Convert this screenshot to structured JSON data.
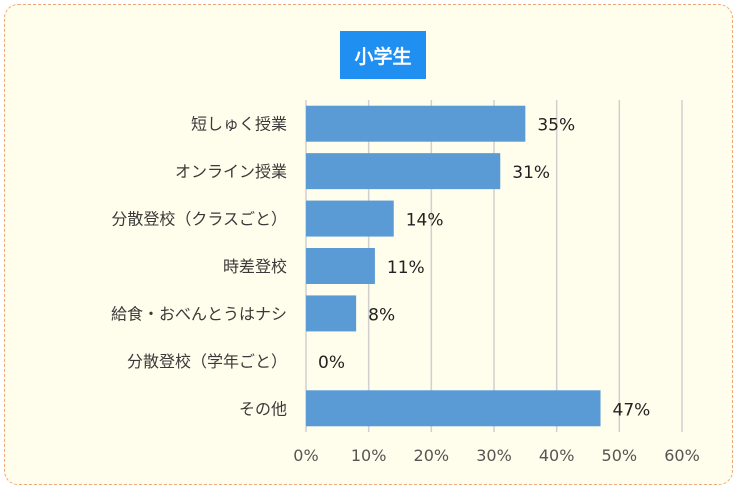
{
  "chart_data": {
    "type": "bar",
    "orientation": "horizontal",
    "title": "小学生",
    "categories": [
      "短しゅく授業",
      "オンライン授業",
      "分散登校（クラスごと）",
      "時差登校",
      "給食・おべんとうはナシ",
      "分散登校（学年ごと）",
      "その他"
    ],
    "values": [
      35,
      31,
      14,
      11,
      8,
      0,
      47
    ],
    "value_labels": [
      "35%",
      "31%",
      "14%",
      "11%",
      "8%",
      "0%",
      "47%"
    ],
    "xlim": [
      0,
      60
    ],
    "xticks": [
      0,
      10,
      20,
      30,
      40,
      50,
      60
    ],
    "xtick_labels": [
      "0%",
      "10%",
      "20%",
      "30%",
      "40%",
      "50%",
      "60%"
    ],
    "grid": true,
    "bar_color": "#5b9bd5",
    "title_bg_color": "#1f8ff2",
    "background_color": "#fffdeb",
    "border_color": "#f0a878"
  }
}
